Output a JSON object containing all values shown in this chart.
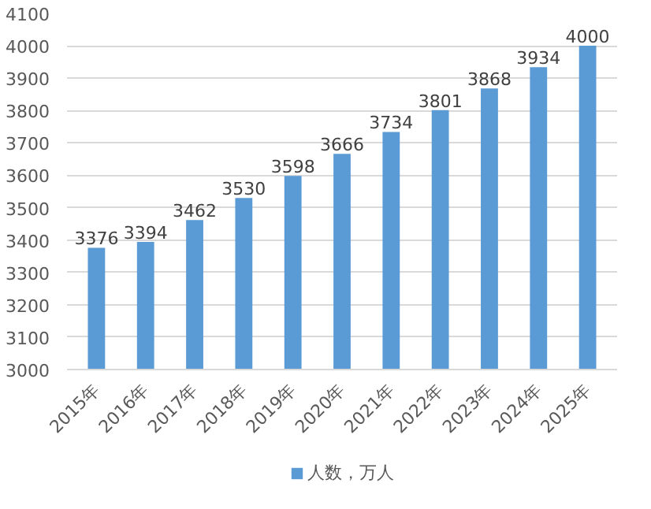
{
  "chart_data": {
    "type": "bar",
    "categories": [
      "2015年",
      "2016年",
      "2017年",
      "2018年",
      "2019年",
      "2020年",
      "2021年",
      "2022年",
      "2023年",
      "2024年",
      "2025年"
    ],
    "series": [
      {
        "name": "人数，万人",
        "color": "#5b9bd5",
        "values": [
          3376,
          3394,
          3462,
          3530,
          3598,
          3666,
          3734,
          3801,
          3868,
          3934,
          4000
        ]
      }
    ],
    "ylim": [
      3000,
      4100
    ],
    "yticks": [
      3000,
      3100,
      3200,
      3300,
      3400,
      3500,
      3600,
      3700,
      3800,
      3900,
      4000,
      4100
    ],
    "grid": "y",
    "legend": "bottom",
    "data_labels": true
  }
}
